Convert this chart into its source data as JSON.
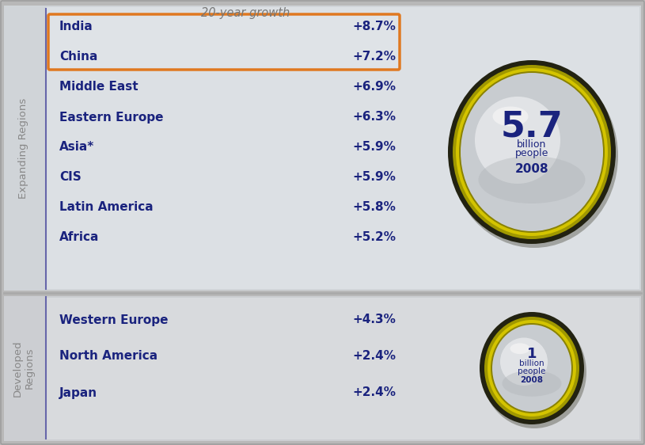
{
  "title": "20-year growth",
  "expanding_regions_label": "Expanding Regions",
  "developed_regions_label": "Developed\nRegions",
  "expanding_rows": [
    {
      "region": "India",
      "growth": "+8.7%",
      "highlight": true
    },
    {
      "region": "China",
      "growth": "+7.2%",
      "highlight": true
    },
    {
      "region": "Middle East",
      "growth": "+6.9%",
      "highlight": false
    },
    {
      "region": "Eastern Europe",
      "growth": "+6.3%",
      "highlight": false
    },
    {
      "region": "Asia*",
      "growth": "+5.9%",
      "highlight": false
    },
    {
      "region": "CIS",
      "growth": "+5.9%",
      "highlight": false
    },
    {
      "region": "Latin America",
      "growth": "+5.8%",
      "highlight": false
    },
    {
      "region": "Africa",
      "growth": "+5.2%",
      "highlight": false
    }
  ],
  "developed_rows": [
    {
      "region": "Western Europe",
      "growth": "+4.3%",
      "highlight": false
    },
    {
      "region": "North America",
      "growth": "+2.4%",
      "highlight": false
    },
    {
      "region": "Japan",
      "growth": "+2.4%",
      "highlight": false
    }
  ],
  "big_circle_value": "5.7",
  "big_circle_sub1": "billion",
  "big_circle_sub2": "people",
  "big_circle_year": "2008",
  "small_circle_value": "1",
  "small_circle_sub1": "billion",
  "small_circle_sub2": "people",
  "small_circle_year": "2008",
  "highlight_box_color": "#E07820",
  "text_color": "#1a237e",
  "sidebar_text_color": "#888888",
  "bg_outer": "#b8b8b8",
  "bg_top_panel": "#d0d4d8",
  "bg_bottom_panel": "#ccced2",
  "bg_inner_panel": "#dce0e4",
  "separator_color": "#6666aa",
  "row_font_size": 11,
  "title_font_size": 10.5,
  "sidebar_font_size": 9.5
}
